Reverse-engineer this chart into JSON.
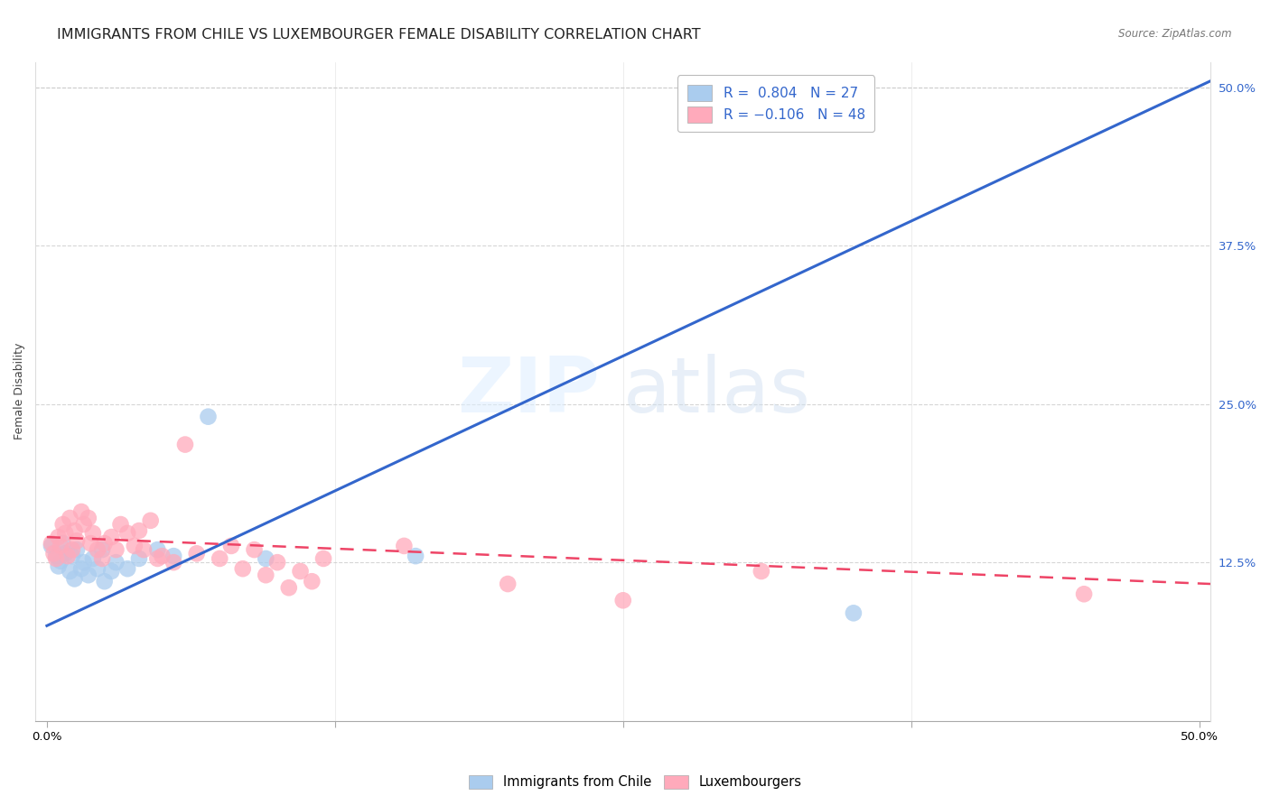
{
  "title": "IMMIGRANTS FROM CHILE VS LUXEMBOURGER FEMALE DISABILITY CORRELATION CHART",
  "source": "Source: ZipAtlas.com",
  "ylabel": "Female Disability",
  "yticks": [
    "50.0%",
    "37.5%",
    "25.0%",
    "12.5%"
  ],
  "ytick_vals": [
    0.5,
    0.375,
    0.25,
    0.125
  ],
  "xlim": [
    -0.005,
    0.505
  ],
  "ylim": [
    0.0,
    0.52
  ],
  "blue_color": "#AACCEE",
  "pink_color": "#FFAABB",
  "blue_line_color": "#3366CC",
  "pink_line_color": "#EE4466",
  "watermark_zip": "ZIP",
  "watermark_atlas": "atlas",
  "blue_x": [
    0.002,
    0.004,
    0.005,
    0.006,
    0.007,
    0.008,
    0.01,
    0.011,
    0.012,
    0.013,
    0.015,
    0.016,
    0.018,
    0.02,
    0.022,
    0.024,
    0.025,
    0.028,
    0.03,
    0.035,
    0.04,
    0.048,
    0.055,
    0.07,
    0.095,
    0.16,
    0.35
  ],
  "blue_y": [
    0.138,
    0.13,
    0.122,
    0.126,
    0.14,
    0.132,
    0.118,
    0.13,
    0.112,
    0.135,
    0.12,
    0.125,
    0.115,
    0.128,
    0.12,
    0.135,
    0.11,
    0.118,
    0.125,
    0.12,
    0.128,
    0.135,
    0.13,
    0.24,
    0.128,
    0.13,
    0.085
  ],
  "pink_x": [
    0.002,
    0.003,
    0.004,
    0.005,
    0.006,
    0.007,
    0.008,
    0.009,
    0.01,
    0.011,
    0.012,
    0.013,
    0.015,
    0.016,
    0.018,
    0.019,
    0.02,
    0.022,
    0.024,
    0.025,
    0.028,
    0.03,
    0.032,
    0.035,
    0.038,
    0.04,
    0.042,
    0.045,
    0.048,
    0.05,
    0.055,
    0.06,
    0.065,
    0.075,
    0.08,
    0.085,
    0.09,
    0.095,
    0.1,
    0.105,
    0.11,
    0.115,
    0.12,
    0.155,
    0.2,
    0.25,
    0.31,
    0.45
  ],
  "pink_y": [
    0.14,
    0.132,
    0.128,
    0.145,
    0.138,
    0.155,
    0.148,
    0.13,
    0.16,
    0.135,
    0.15,
    0.142,
    0.165,
    0.155,
    0.16,
    0.14,
    0.148,
    0.135,
    0.128,
    0.14,
    0.145,
    0.135,
    0.155,
    0.148,
    0.138,
    0.15,
    0.135,
    0.158,
    0.128,
    0.13,
    0.125,
    0.218,
    0.132,
    0.128,
    0.138,
    0.12,
    0.135,
    0.115,
    0.125,
    0.105,
    0.118,
    0.11,
    0.128,
    0.138,
    0.108,
    0.095,
    0.118,
    0.1
  ],
  "blue_trend_x": [
    0.0,
    0.505
  ],
  "blue_trend_y": [
    0.075,
    0.505
  ],
  "pink_trend_x": [
    0.0,
    0.505
  ],
  "pink_trend_y": [
    0.145,
    0.108
  ],
  "grid_color": "#CCCCCC",
  "background_color": "#FFFFFF",
  "title_fontsize": 11.5,
  "axis_label_fontsize": 9,
  "tick_fontsize": 9.5
}
